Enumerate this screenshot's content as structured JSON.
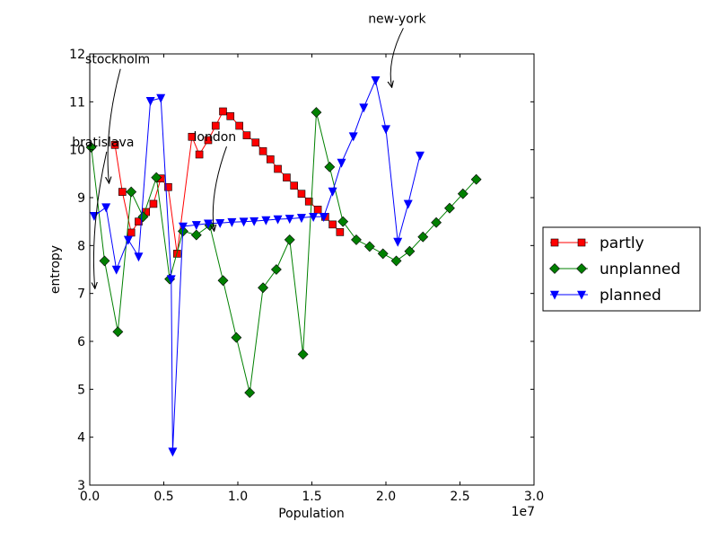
{
  "chart_data": {
    "type": "line",
    "title": "",
    "xlabel": "Population",
    "ylabel": "entropy",
    "x_offset_label": "1e7",
    "xlim": [
      0,
      30000000
    ],
    "ylim": [
      3,
      12
    ],
    "x_ticks": [
      0,
      5000000,
      10000000,
      15000000,
      20000000,
      25000000,
      30000000
    ],
    "x_tick_labels": [
      "0.0",
      "0.5",
      "1.0",
      "1.5",
      "2.0",
      "2.5",
      "3.0"
    ],
    "y_ticks": [
      3,
      4,
      5,
      6,
      7,
      8,
      9,
      10,
      11,
      12
    ],
    "y_tick_labels": [
      "3",
      "4",
      "5",
      "6",
      "7",
      "8",
      "9",
      "10",
      "11",
      "12"
    ],
    "grid": false,
    "legend_position": "right",
    "series": [
      {
        "name": "partly",
        "color": "#ff0000",
        "marker": "square",
        "x": [
          1700000,
          2200000,
          2800000,
          3300000,
          3800000,
          4300000,
          4800000,
          5300000,
          5900000,
          6900000,
          7400000,
          8000000,
          8500000,
          9000000,
          9500000,
          10100000,
          10600000,
          11200000,
          11700000,
          12200000,
          12700000,
          13300000,
          13800000,
          14300000,
          14800000,
          15400000,
          15900000,
          16400000,
          16900000
        ],
        "y": [
          10.1,
          9.12,
          8.27,
          8.5,
          8.7,
          8.87,
          9.4,
          9.22,
          7.83,
          10.27,
          9.9,
          10.2,
          10.5,
          10.8,
          10.7,
          10.5,
          10.3,
          10.15,
          9.97,
          9.8,
          9.6,
          9.42,
          9.25,
          9.08,
          8.92,
          8.75,
          8.6,
          8.44,
          8.28
        ]
      },
      {
        "name": "unplanned",
        "color": "#008000",
        "marker": "diamond",
        "x": [
          100000,
          1000000,
          1900000,
          2800000,
          3600000,
          4500000,
          5400000,
          6300000,
          7200000,
          8100000,
          9000000,
          9900000,
          10800000,
          11700000,
          12600000,
          13500000,
          14400000,
          15300000,
          16200000,
          17100000,
          18000000,
          18900000,
          19800000,
          20700000,
          21600000,
          22500000,
          23400000,
          24300000,
          25200000,
          26100000
        ],
        "y": [
          10.05,
          7.68,
          6.2,
          9.12,
          8.6,
          9.42,
          7.3,
          8.3,
          8.22,
          8.42,
          7.27,
          6.08,
          4.93,
          7.12,
          7.5,
          8.12,
          5.73,
          10.78,
          9.64,
          8.5,
          8.12,
          7.98,
          7.83,
          7.68,
          7.88,
          8.18,
          8.48,
          8.78,
          9.08,
          9.38
        ]
      },
      {
        "name": "planned",
        "color": "#0000ff",
        "marker": "triangle-down",
        "x": [
          300000,
          1100000,
          1800000,
          2600000,
          3300000,
          4100000,
          4800000,
          5500000,
          5600000,
          6300000,
          7200000,
          8000000,
          8800000,
          9600000,
          10400000,
          11100000,
          11900000,
          12700000,
          13500000,
          14300000,
          15100000,
          15800000,
          16400000,
          17000000,
          17800000,
          18500000,
          19300000,
          20000000,
          20800000,
          21500000,
          22300000
        ],
        "y": [
          8.62,
          8.8,
          7.5,
          8.12,
          7.77,
          11.02,
          11.08,
          7.3,
          3.7,
          8.4,
          8.43,
          8.46,
          8.47,
          8.49,
          8.5,
          8.51,
          8.53,
          8.55,
          8.56,
          8.58,
          8.6,
          8.6,
          9.13,
          9.73,
          10.28,
          10.88,
          11.45,
          10.43,
          8.08,
          8.87,
          9.88
        ]
      }
    ],
    "annotations": [
      {
        "text": "stockholm",
        "x_text": -300000,
        "y_text": 11.8,
        "x_arrow": 1300000,
        "y_arrow": 9.3
      },
      {
        "text": "bratislava",
        "x_text": -1200000,
        "y_text": 10.07,
        "x_arrow": 350000,
        "y_arrow": 7.1
      },
      {
        "text": "london",
        "x_text": 7000000,
        "y_text": 10.18,
        "x_arrow": 8400000,
        "y_arrow": 8.3
      },
      {
        "text": "new-york",
        "x_text": 18800000,
        "y_text": 12.65,
        "x_arrow": 20400000,
        "y_arrow": 11.3
      }
    ]
  }
}
